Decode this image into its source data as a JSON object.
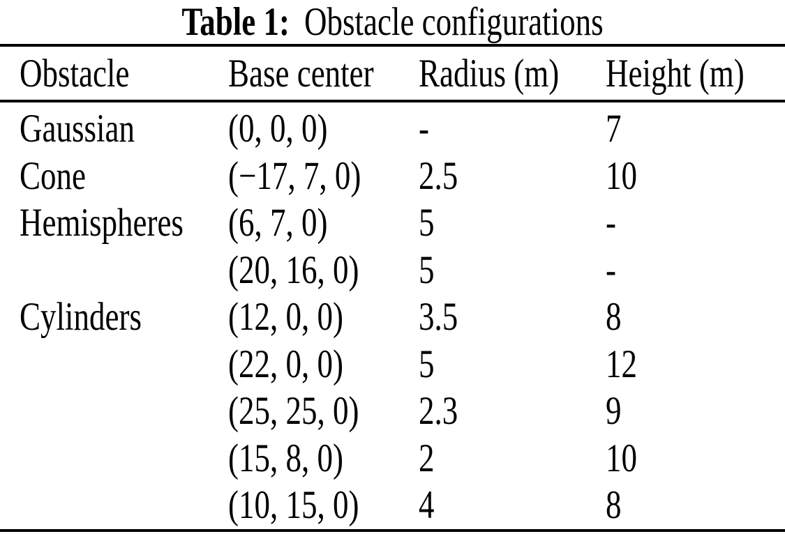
{
  "title": {
    "label": "Table 1:",
    "caption": "Obstacle configurations"
  },
  "table": {
    "columns": [
      "Obstacle",
      "Base center",
      "Radius (m)",
      "Height (m)"
    ],
    "rows": [
      {
        "obstacle": "Gaussian",
        "base_center": "(0, 0, 0)",
        "radius": "-",
        "height": "7"
      },
      {
        "obstacle": "Cone",
        "base_center": "(−17, 7, 0)",
        "radius": "2.5",
        "height": "10"
      },
      {
        "obstacle": "Hemispheres",
        "base_center": "(6, 7, 0)",
        "radius": "5",
        "height": "-"
      },
      {
        "obstacle": "",
        "base_center": "(20, 16, 0)",
        "radius": "5",
        "height": "-"
      },
      {
        "obstacle": "Cylinders",
        "base_center": "(12, 0, 0)",
        "radius": "3.5",
        "height": "8"
      },
      {
        "obstacle": "",
        "base_center": "(22, 0, 0)",
        "radius": "5",
        "height": "12"
      },
      {
        "obstacle": "",
        "base_center": "(25, 25, 0)",
        "radius": "2.3",
        "height": "9"
      },
      {
        "obstacle": "",
        "base_center": "(15, 8, 0)",
        "radius": "2",
        "height": "10"
      },
      {
        "obstacle": "",
        "base_center": "(10, 15, 0)",
        "radius": "4",
        "height": "8"
      }
    ]
  },
  "colors": {
    "text": "#000000",
    "background": "#ffffff",
    "rule": "#000000"
  }
}
